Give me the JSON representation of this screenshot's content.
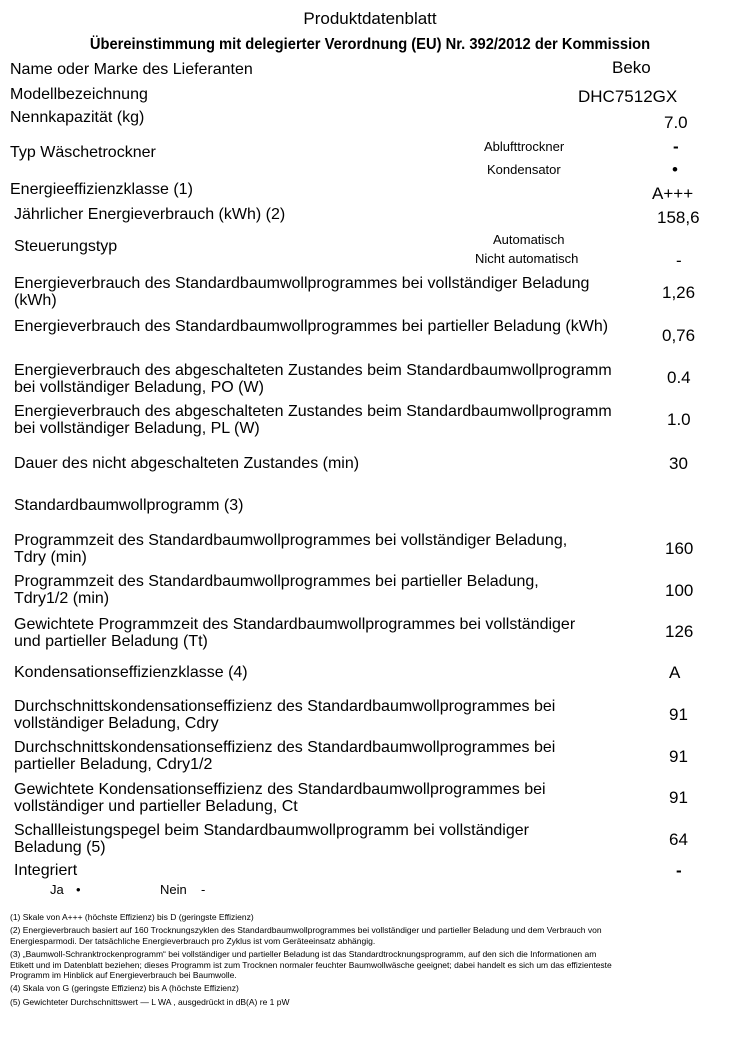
{
  "title": "Produktdatenblatt",
  "subtitle": "Übereinstimmung mit delegierter Verordnung (EU) Nr. 392/2012 der Kommission",
  "rows": {
    "supplier": {
      "label": "Name oder Marke des Lieferanten",
      "value": "Beko"
    },
    "model": {
      "label": "Modellbezeichnung",
      "value": "DHC7512GX"
    },
    "capacity": {
      "label": "Nennkapazität (kg)",
      "value": "7.0"
    },
    "type": {
      "label": "Typ Wäschetrockner",
      "opt1": "Ablufttrockner",
      "val1": "-",
      "opt2": "Kondensator",
      "val2": "•"
    },
    "eclass": {
      "label": "Energieeffizienzklasse (1)",
      "value": "A+++"
    },
    "annual": {
      "label": "Jährlicher Energieverbrauch (kWh) (2)",
      "value": "158,6"
    },
    "control": {
      "label": "Steuerungstyp",
      "opt1": "Automatisch",
      "opt2": "Nicht automatisch",
      "val2": "-"
    },
    "full": {
      "label": "Energieverbrauch des Standardbaumwollprogrammes bei vollständiger Beladung (kWh)",
      "value": "1,26"
    },
    "partial": {
      "label": "Energieverbrauch des Standardbaumwollprogrammes bei partieller Beladung (kWh)",
      "value": "0,76"
    },
    "po": {
      "label": "Energieverbrauch des abgeschalteten Zustandes beim Standardbaumwollprogramm bei vollständiger Beladung, PO (W)",
      "value": "0.4"
    },
    "pl": {
      "label": "Energieverbrauch des abgeschalteten Zustandes beim Standardbaumwollprogramm bei vollständiger Beladung, PL (W)",
      "value": "1.0"
    },
    "duration": {
      "label": "Dauer des nicht abgeschalteten Zustandes (min)",
      "value": "30"
    },
    "std": {
      "label": "Standardbaumwollprogramm (3)"
    },
    "tdry": {
      "label": "Programmzeit des Standardbaumwollprogrammes bei vollständiger Beladung, Tdry (min)",
      "value": "160"
    },
    "tdry12": {
      "label": "Programmzeit des Standardbaumwollprogrammes bei partieller Beladung, Tdry1/2 (min)",
      "value": "100"
    },
    "tt": {
      "label": "Gewichtete Programmzeit des Standardbaumwollprogrammes bei vollständiger und partieller Beladung (Tt)",
      "value": "126"
    },
    "cclass": {
      "label": "Kondensationseffizienzklasse (4)",
      "value": "A"
    },
    "cdry": {
      "label": "Durchschnittskondensationseffizienz des Standardbaumwollprogrammes bei vollständiger Beladung, Cdry",
      "value": "91"
    },
    "cdry12": {
      "label": "Durchschnittskondensationseffizienz des Standardbaumwollprogrammes bei partieller Beladung, Cdry1/2",
      "value": "91"
    },
    "ct": {
      "label": "Gewichtete Kondensationseffizienz des Standardbaumwollprogrammes bei vollständiger und partieller Beladung, Ct",
      "value": "91"
    },
    "noise": {
      "label": "Schallleistungspegel beim Standardbaumwollprogramm bei vollständiger Beladung (5)",
      "value": "64"
    },
    "integrated": {
      "label": "Integriert",
      "value": "-",
      "ja": "Ja",
      "ja_mark": "•",
      "nein": "Nein",
      "nein_mark": "-"
    }
  },
  "footnotes": [
    "(1) Skale von A+++ (höchste Effizienz) bis D (geringste Effizienz)",
    "(2) Energieverbrauch basiert auf 160 Trocknungszyklen des Standardbaumwollprogrammes bei vollständiger und partieller Beladung und dem Verbrauch von Energiesparmodi. Der tatsächliche Energieverbrauch pro Zyklus ist vom Geräteeinsatz abhängig.",
    "(3) „Baumwoll-Schranktrockenprogramm“ bei vollständiger und partieller Beladung ist das Standardtrocknungsprogramm, auf den sich die Informationen am Etikett und im Datenblatt beziehen; dieses Programm ist zum Trocknen normaler feuchter Baumwollwäsche geeignet; dabei handelt es sich um das effizienteste Programm im Hinblick auf Energieverbrauch bei Baumwolle.",
    "(4) Skala von G (geringste Effizienz) bis A (höchste Effizienz)",
    "(5) Gewichteter Durchschnittswert — L WA , ausgedrückt in dB(A) re 1 pW"
  ]
}
